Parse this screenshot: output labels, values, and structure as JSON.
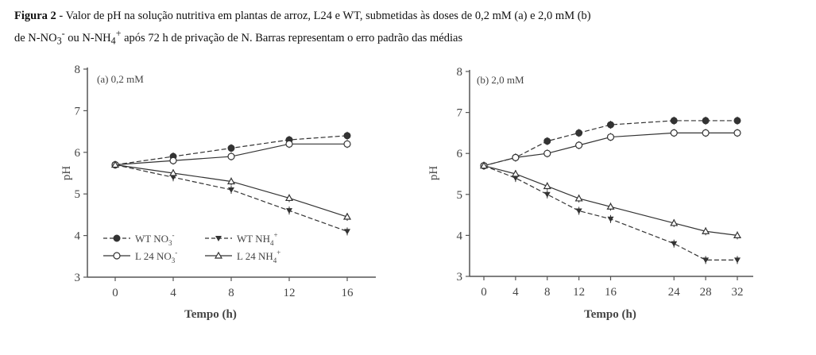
{
  "caption": {
    "bold": "Figura 2",
    "line1": " - Valor de pH na solução nutritiva em plantas de arroz, L24 e WT, submetidas às doses de 0,2 mM (a) e 2,0 mM (b)",
    "line2_a": "de N-NO",
    "line2_b": " ou N-NH",
    "line2_c": " após 72 h de privação de N. Barras representam o erro padrão das médias",
    "sub3": "3",
    "supminus": "-",
    "sub4": "4",
    "supplus": "+"
  },
  "colors": {
    "line": "#333333",
    "axis": "#555555"
  },
  "chart_data": [
    {
      "type": "line",
      "title": "(a)  0,2 mM",
      "xlabel": "Tempo (h)",
      "ylabel": "pH",
      "x": [
        0,
        4,
        8,
        12,
        16
      ],
      "xticks": [
        0,
        4,
        8,
        12,
        16
      ],
      "yticks": [
        3,
        4,
        5,
        6,
        7,
        8
      ],
      "ylim": [
        3,
        8
      ],
      "legend_position": "bottom-left",
      "series": [
        {
          "name": "WT NO3-",
          "label": "WT NO",
          "sub": "3",
          "sup": "-",
          "marker": "filled-circle",
          "dash": true,
          "values": [
            5.7,
            5.9,
            6.1,
            6.3,
            6.4
          ]
        },
        {
          "name": "WT NH4+",
          "label": "WT NH",
          "sub": "4",
          "sup": "+",
          "marker": "filled-triangle-down",
          "dash": true,
          "values": [
            5.7,
            5.4,
            5.1,
            4.6,
            4.1
          ]
        },
        {
          "name": "L 24 NO3-",
          "label": "L 24 NO",
          "sub": "3",
          "sup": "-",
          "marker": "open-circle",
          "dash": false,
          "values": [
            5.7,
            5.8,
            5.9,
            6.2,
            6.2
          ]
        },
        {
          "name": "L 24 NH4+",
          "label": "L 24 NH",
          "sub": "4",
          "sup": "+",
          "marker": "open-triangle-up",
          "dash": false,
          "values": [
            5.7,
            5.5,
            5.3,
            4.9,
            4.45
          ]
        }
      ]
    },
    {
      "type": "line",
      "title": "(b)  2,0 mM",
      "xlabel": "Tempo (h)",
      "ylabel": "pH",
      "x": [
        0,
        4,
        8,
        12,
        16,
        24,
        28,
        32
      ],
      "xticks": [
        0,
        4,
        8,
        12,
        16,
        24,
        28,
        32
      ],
      "yticks": [
        3,
        4,
        5,
        6,
        7,
        8
      ],
      "ylim": [
        3,
        8
      ],
      "series": [
        {
          "name": "WT NO3-",
          "marker": "filled-circle",
          "dash": true,
          "values": [
            5.7,
            5.9,
            6.3,
            6.5,
            6.7,
            6.8,
            6.8,
            6.8
          ]
        },
        {
          "name": "WT NH4+",
          "marker": "filled-triangle-down",
          "dash": true,
          "values": [
            5.7,
            5.4,
            5.0,
            4.6,
            4.4,
            3.8,
            3.4,
            3.4
          ]
        },
        {
          "name": "L 24 NO3-",
          "marker": "open-circle",
          "dash": false,
          "values": [
            5.7,
            5.9,
            6.0,
            6.2,
            6.4,
            6.5,
            6.5,
            6.5
          ]
        },
        {
          "name": "L 24 NH4+",
          "marker": "open-triangle-up",
          "dash": false,
          "values": [
            5.7,
            5.5,
            5.2,
            4.9,
            4.7,
            4.3,
            4.1,
            4.0
          ]
        }
      ]
    }
  ]
}
